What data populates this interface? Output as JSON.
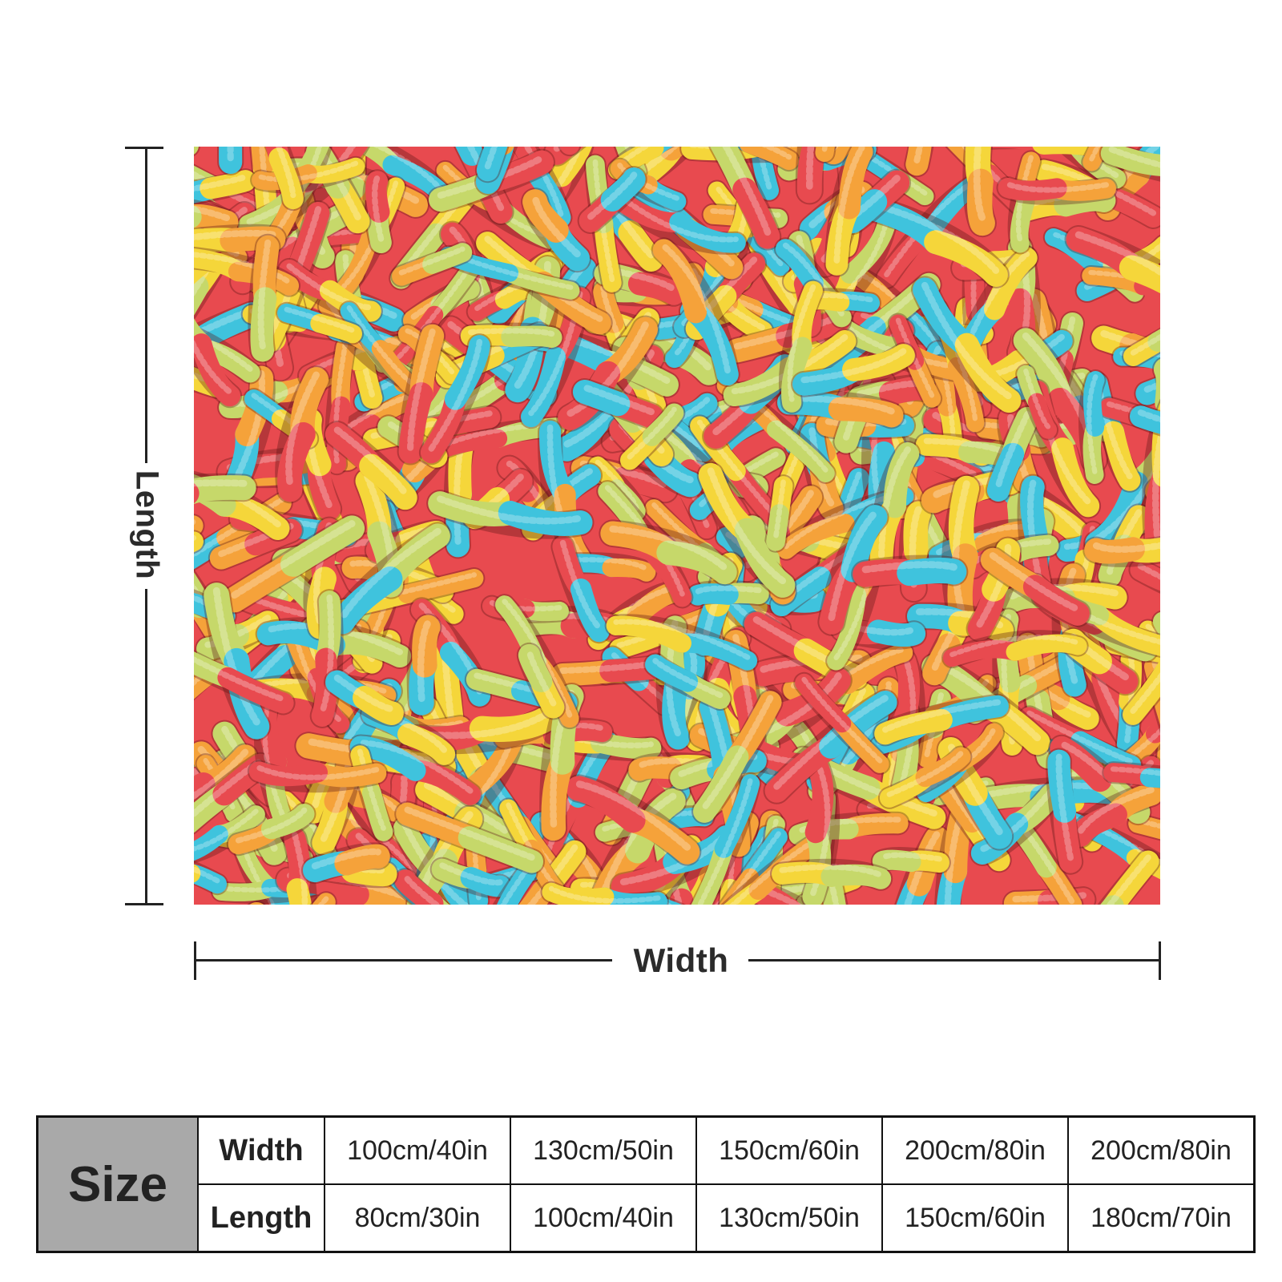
{
  "labels": {
    "length": "Length",
    "width": "Width"
  },
  "table": {
    "size_header": "Size",
    "width_label": "Width",
    "length_label": "Length",
    "widths": [
      "100cm/40in",
      "130cm/50in",
      "150cm/60in",
      "200cm/80in",
      "200cm/80in"
    ],
    "lengths": [
      "80cm/30in",
      "100cm/40in",
      "130cm/50in",
      "150cm/60in",
      "180cm/70in"
    ]
  },
  "colors": {
    "pattern_red": "#e84a4f",
    "pattern_blue": "#3fc3dd",
    "pattern_yellow": "#f5d63a",
    "pattern_orange": "#f5a23a",
    "pattern_green": "#c6d86a",
    "size_cell_bg": "#a9a9a9"
  }
}
